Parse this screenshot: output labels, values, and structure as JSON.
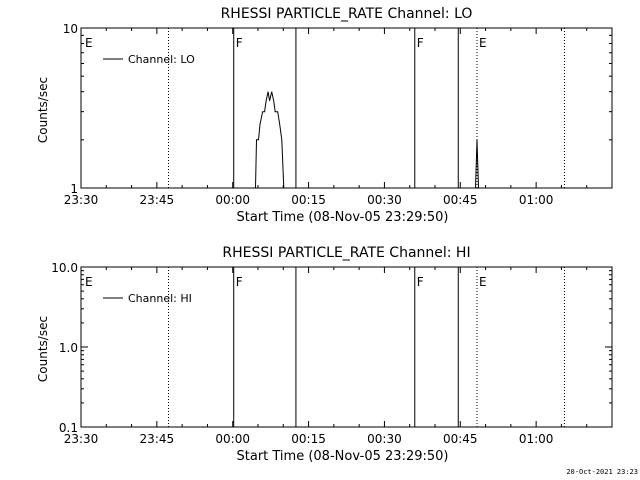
{
  "footer": {
    "timestamp": "20-Oct-2021 23:23"
  },
  "chart_data": [
    {
      "type": "line",
      "title": "RHESSI PARTICLE_RATE Channel: LO",
      "xlabel": "Start Time (08-Nov-05 23:29:50)",
      "ylabel": "Counts/sec",
      "yscale": "log",
      "ylim": [
        1,
        10
      ],
      "yticks": [
        1,
        10
      ],
      "ytick_labels": [
        "1",
        "10"
      ],
      "xlim_minutes": [
        0,
        105
      ],
      "xticks_minutes": [
        0,
        15,
        30,
        45,
        60,
        75,
        90
      ],
      "xtick_labels": [
        "23:30",
        "23:45",
        "00:00",
        "00:15",
        "00:30",
        "00:45",
        "01:00"
      ],
      "grid": false,
      "legend": {
        "position": "top-left",
        "entries": [
          "Channel: LO"
        ]
      },
      "markers": [
        {
          "kind": "solid",
          "t": 30.2,
          "label": "F"
        },
        {
          "kind": "solid",
          "t": 42.5,
          "label": ""
        },
        {
          "kind": "solid",
          "t": 66.0,
          "label": "F"
        },
        {
          "kind": "solid",
          "t": 74.6,
          "label": ""
        },
        {
          "kind": "dotted",
          "t": 17.3,
          "label": ""
        },
        {
          "kind": "dotted",
          "t": 78.3,
          "label": "E"
        },
        {
          "kind": "dotted",
          "t": 95.6,
          "label": ""
        },
        {
          "kind": "edge",
          "t": 0.4,
          "label": "E"
        }
      ],
      "series": [
        {
          "name": "Channel: LO",
          "points": [
            [
              34.3,
              1
            ],
            [
              34.5,
              1
            ],
            [
              34.7,
              2
            ],
            [
              35.1,
              2
            ],
            [
              35.4,
              2.5
            ],
            [
              35.9,
              3
            ],
            [
              36.3,
              3
            ],
            [
              36.6,
              3.5
            ],
            [
              37.0,
              4
            ],
            [
              37.3,
              3.5
            ],
            [
              37.7,
              4
            ],
            [
              38.1,
              3.5
            ],
            [
              38.4,
              3
            ],
            [
              38.9,
              3
            ],
            [
              39.3,
              2.5
            ],
            [
              39.7,
              2
            ],
            [
              40.1,
              1
            ],
            [
              40.6,
              1
            ],
            [
              78.0,
              1
            ],
            [
              78.3,
              2
            ],
            [
              78.6,
              1
            ]
          ]
        }
      ]
    },
    {
      "type": "line",
      "title": "RHESSI PARTICLE_RATE Channel: HI",
      "xlabel": "Start Time (08-Nov-05 23:29:50)",
      "ylabel": "Counts/sec",
      "yscale": "log",
      "ylim": [
        0.1,
        10
      ],
      "yticks": [
        0.1,
        1,
        10
      ],
      "ytick_labels": [
        "0.1",
        "1.0",
        "10.0"
      ],
      "xlim_minutes": [
        0,
        105
      ],
      "xticks_minutes": [
        0,
        15,
        30,
        45,
        60,
        75,
        90
      ],
      "xtick_labels": [
        "23:30",
        "23:45",
        "00:00",
        "00:15",
        "00:30",
        "00:45",
        "01:00"
      ],
      "grid": false,
      "legend": {
        "position": "top-left",
        "entries": [
          "Channel: HI"
        ]
      },
      "markers": [
        {
          "kind": "solid",
          "t": 30.2,
          "label": "F"
        },
        {
          "kind": "solid",
          "t": 42.5,
          "label": ""
        },
        {
          "kind": "solid",
          "t": 66.0,
          "label": "F"
        },
        {
          "kind": "solid",
          "t": 74.6,
          "label": ""
        },
        {
          "kind": "dotted",
          "t": 17.3,
          "label": ""
        },
        {
          "kind": "dotted",
          "t": 78.3,
          "label": "E"
        },
        {
          "kind": "dotted",
          "t": 95.6,
          "label": ""
        },
        {
          "kind": "edge",
          "t": 0.4,
          "label": "E"
        }
      ],
      "series": [
        {
          "name": "Channel: HI",
          "points": []
        }
      ]
    }
  ]
}
